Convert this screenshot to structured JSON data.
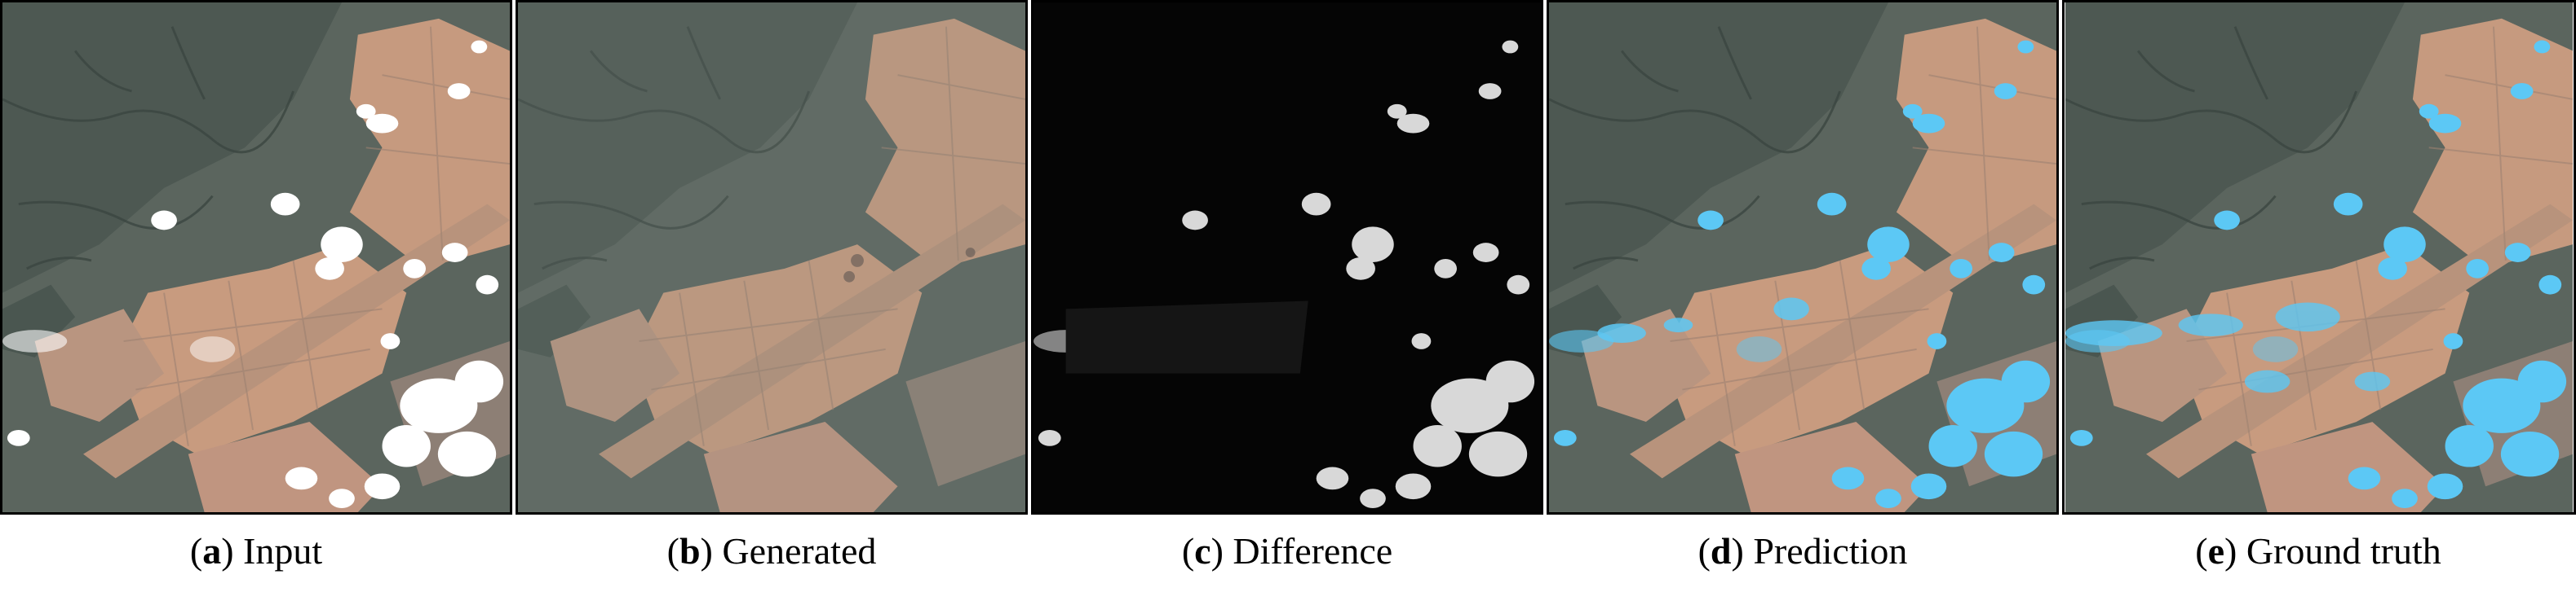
{
  "figure": {
    "panels": [
      {
        "id": "a",
        "label": "a",
        "title": "Input"
      },
      {
        "id": "b",
        "label": "b",
        "title": "Generated"
      },
      {
        "id": "c",
        "label": "c",
        "title": "Difference"
      },
      {
        "id": "d",
        "label": "d",
        "title": "Prediction"
      },
      {
        "id": "e",
        "label": "e",
        "title": "Ground truth"
      }
    ]
  },
  "colors": {
    "terrain_dark": "#55605a",
    "terrain_field": "#c79a7d",
    "cloud": "#ffffff",
    "mask_blue": "#5cc8f5",
    "difference_bg": "#050505"
  }
}
